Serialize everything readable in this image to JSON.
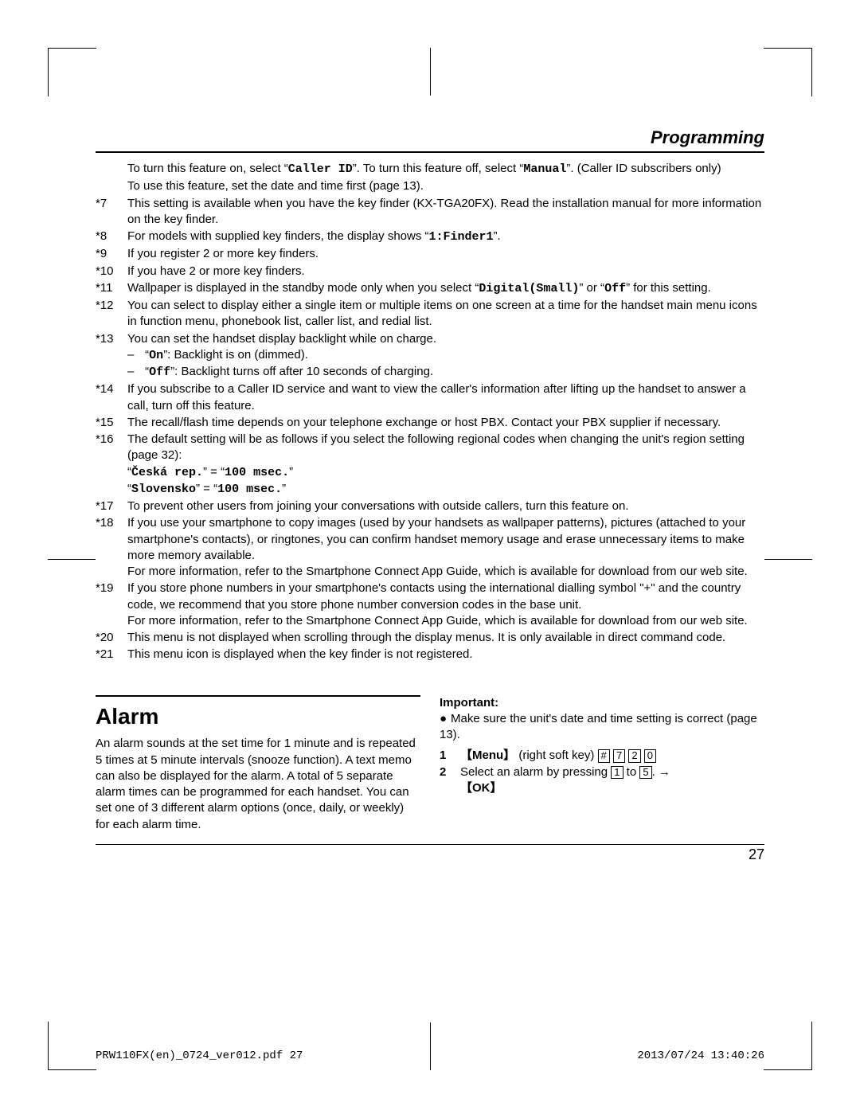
{
  "header": {
    "title": "Programming"
  },
  "notes": [
    {
      "num": "",
      "body_parts": [
        {
          "t": "To turn this feature on, select "
        },
        {
          "t": "“"
        },
        {
          "t": "Caller ID",
          "mono": true
        },
        {
          "t": "”"
        },
        {
          "t": ". To turn this feature off, select "
        },
        {
          "t": "“"
        },
        {
          "t": "Manual",
          "mono": true
        },
        {
          "t": "”"
        },
        {
          "t": ". (Caller ID subscribers only)"
        }
      ]
    },
    {
      "num": "",
      "body_parts": [
        {
          "t": "To use this feature, set the date and time first (page 13)."
        }
      ]
    },
    {
      "num": "*7",
      "body_parts": [
        {
          "t": "This setting is available when you have the key finder (KX-TGA20FX). Read the installation manual for more information on the key finder."
        }
      ]
    },
    {
      "num": "*8",
      "body_parts": [
        {
          "t": "For models with supplied key finders, the display shows "
        },
        {
          "t": "“"
        },
        {
          "t": "1:Finder1",
          "mono": true
        },
        {
          "t": "”"
        },
        {
          "t": "."
        }
      ]
    },
    {
      "num": "*9",
      "body_parts": [
        {
          "t": "If you register 2 or more key finders."
        }
      ]
    },
    {
      "num": "*10",
      "body_parts": [
        {
          "t": "If you have 2 or more key finders."
        }
      ]
    },
    {
      "num": "*11",
      "body_parts": [
        {
          "t": "Wallpaper is displayed in the standby mode only when you select "
        },
        {
          "t": "“"
        },
        {
          "t": "Digital(Small)",
          "mono": true
        },
        {
          "t": "”"
        },
        {
          "t": " or "
        },
        {
          "t": "“"
        },
        {
          "t": "Off",
          "mono": true
        },
        {
          "t": "”"
        },
        {
          "t": " for this setting."
        }
      ]
    },
    {
      "num": "*12",
      "body_parts": [
        {
          "t": "You can select to display either a single item or multiple items on one screen at a time for the handset main menu icons in function menu, phonebook list, caller list, and redial list."
        }
      ]
    },
    {
      "num": "*13",
      "body_parts": [
        {
          "t": "You can set the handset display backlight while on charge."
        }
      ],
      "subs": [
        [
          {
            "t": "“"
          },
          {
            "t": "On",
            "mono": true
          },
          {
            "t": "”"
          },
          {
            "t": ": Backlight is on (dimmed)."
          }
        ],
        [
          {
            "t": "“"
          },
          {
            "t": "Off",
            "mono": true
          },
          {
            "t": "”"
          },
          {
            "t": ": Backlight turns off after 10 seconds of charging."
          }
        ]
      ]
    },
    {
      "num": "*14",
      "body_parts": [
        {
          "t": "If you subscribe to a Caller ID service and want to view the caller's information after lifting up the handset to answer a call, turn off this feature."
        }
      ]
    },
    {
      "num": "*15",
      "body_parts": [
        {
          "t": "The recall/flash time depends on your telephone exchange or host PBX. Contact your PBX supplier if necessary."
        }
      ]
    },
    {
      "num": "*16",
      "body_parts": [
        {
          "t": "The default setting will be as follows if you select the following regional codes when changing the unit's region setting (page 32):"
        }
      ],
      "lines": [
        [
          {
            "t": "“"
          },
          {
            "t": "Česká rep.",
            "mono": true
          },
          {
            "t": "”"
          },
          {
            "t": " = "
          },
          {
            "t": "“"
          },
          {
            "t": "100 msec.",
            "mono": true
          },
          {
            "t": "”"
          }
        ],
        [
          {
            "t": "“"
          },
          {
            "t": "Slovensko",
            "mono": true
          },
          {
            "t": "”"
          },
          {
            "t": " = "
          },
          {
            "t": "“"
          },
          {
            "t": "100 msec.",
            "mono": true
          },
          {
            "t": "”"
          }
        ]
      ]
    },
    {
      "num": "*17",
      "body_parts": [
        {
          "t": "To prevent other users from joining your conversations with outside callers, turn this feature on."
        }
      ]
    },
    {
      "num": "*18",
      "body_parts": [
        {
          "t": "If you use your smartphone to copy images (used by your handsets as wallpaper patterns), pictures (attached to your smartphone's contacts), or ringtones, you can confirm handset memory usage and erase unnecessary items to make more memory available."
        }
      ],
      "extra": [
        {
          "t": "For more information, refer to the Smartphone Connect App Guide, which is available for download from our web site."
        }
      ]
    },
    {
      "num": "*19",
      "body_parts": [
        {
          "t": "If you store phone numbers in your smartphone's contacts using the international dialling symbol \"+\" and the country code, we recommend that you store phone number conversion codes in the base unit."
        }
      ],
      "extra": [
        {
          "t": "For more information, refer to the Smartphone Connect App Guide, which is available for download from our web site."
        }
      ]
    },
    {
      "num": "*20",
      "body_parts": [
        {
          "t": "This menu is not displayed when scrolling through the display menus. It is only available in direct command code."
        }
      ]
    },
    {
      "num": "*21",
      "body_parts": [
        {
          "t": "This menu icon is displayed when the key finder is not registered."
        }
      ]
    }
  ],
  "alarm": {
    "title": "Alarm",
    "body": "An alarm sounds at the set time for 1 minute and is repeated 5 times at 5 minute intervals (snooze function). A text memo can also be displayed for the alarm. A total of 5 separate alarm times can be programmed for each handset. You can set one of 3 different alarm options (once, daily, or weekly) for each alarm time.",
    "important_label": "Important:",
    "important_text": "Make sure the unit's date and time setting is correct (page 13).",
    "step1_prefix": "【Menu】",
    "step1_mid": " (right soft key) ",
    "keys1": [
      "#",
      "7",
      "2",
      "0"
    ],
    "step2_a": "Select an alarm by pressing ",
    "keys2a": "1",
    "step2_b": " to ",
    "keys2b": "5",
    "step2_c": ". → ",
    "ok": "【OK】"
  },
  "page_number": "27",
  "footer_left": "PRW110FX(en)_0724_ver012.pdf   27",
  "footer_right": "2013/07/24   13:40:26"
}
